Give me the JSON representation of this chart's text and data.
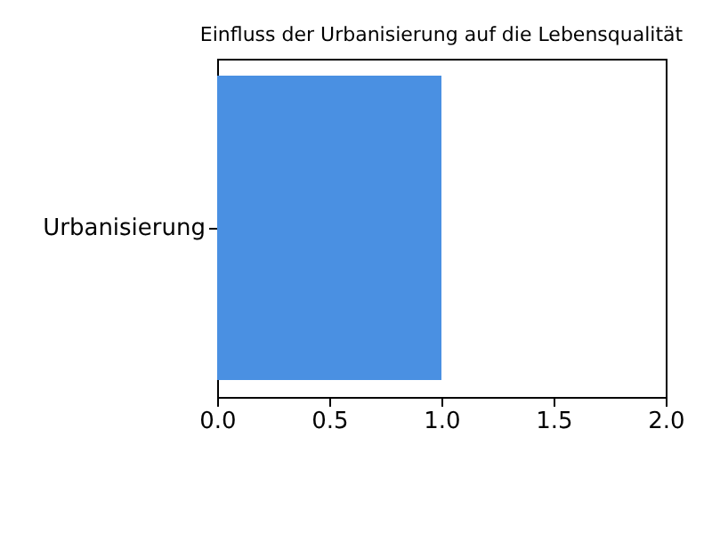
{
  "chart_data": {
    "type": "bar",
    "orientation": "horizontal",
    "title": "Einfluss der Urbanisierung auf die Lebensqualität",
    "categories": [
      "Urbanisierung"
    ],
    "series": [
      {
        "color": "#4a90e2",
        "values": [
          1.0
        ]
      }
    ],
    "xlim": [
      0,
      2
    ],
    "xticks": [
      {
        "value": 0,
        "label": "0.0"
      },
      0.5,
      {
        "value": 1,
        "label": "1.0"
      },
      1.5,
      {
        "value": 2,
        "label": "2.0"
      }
    ],
    "grid": false
  }
}
